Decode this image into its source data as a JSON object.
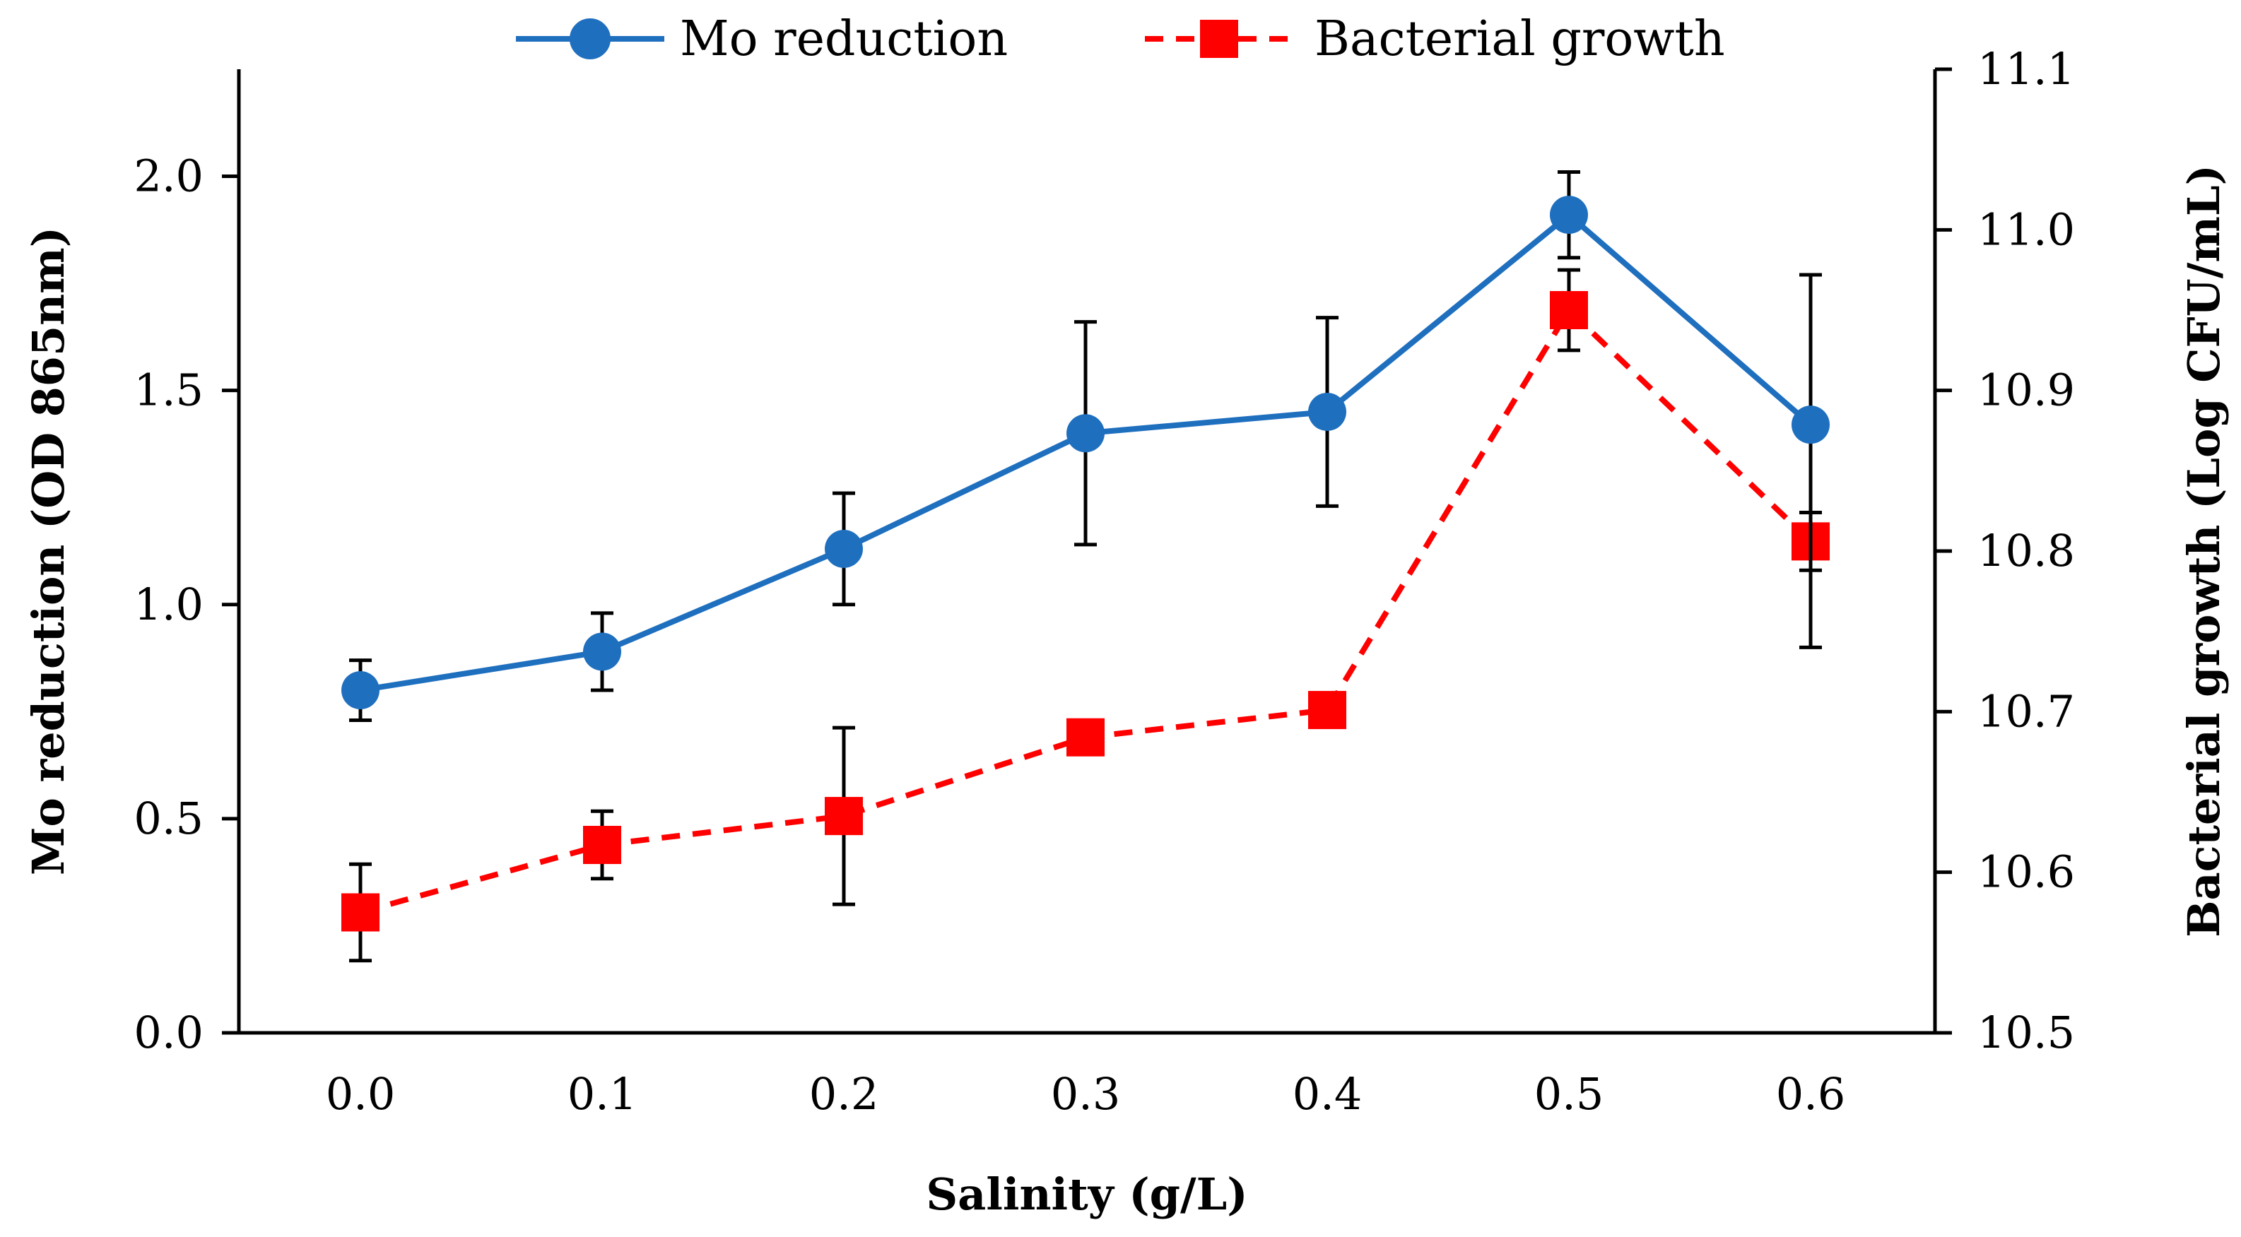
{
  "chart_data": {
    "type": "line",
    "xlabel": "Salinity (g/L)",
    "ylabel": "Mo reduction (OD 865nm)",
    "y2label": "Bacterial growth (Log CFU/mL)",
    "x": [
      0.0,
      0.1,
      0.2,
      0.3,
      0.4,
      0.5,
      0.6
    ],
    "x_tick_labels": [
      "0.0",
      "0.1",
      "0.2",
      "0.3",
      "0.4",
      "0.5",
      "0.6"
    ],
    "xlim": [
      -0.05,
      0.65
    ],
    "ylim": [
      0,
      2.25
    ],
    "y_ticks": [
      0.0,
      0.5,
      1.0,
      1.5,
      2.0
    ],
    "y_tick_labels": [
      "0.0",
      "0.5",
      "1.0",
      "1.5",
      "2.0"
    ],
    "y2lim": [
      10.5,
      11.1
    ],
    "y2_ticks": [
      10.5,
      10.6,
      10.7,
      10.8,
      10.9,
      11.0,
      11.1
    ],
    "y2_tick_labels": [
      "10.5",
      "10.6",
      "10.7",
      "10.8",
      "10.9",
      "11.0",
      "11.1"
    ],
    "legend_position": "top",
    "grid": false,
    "series": [
      {
        "name": "Mo reduction",
        "axis": "left",
        "marker": "circle",
        "line_style": "solid",
        "color": "#1F6FBF",
        "values": [
          0.8,
          0.89,
          1.13,
          1.4,
          1.45,
          1.91,
          1.42
        ],
        "error_low": [
          0.07,
          0.09,
          0.13,
          0.26,
          0.22,
          0.1,
          0.52
        ],
        "error_high": [
          0.07,
          0.09,
          0.13,
          0.26,
          0.22,
          0.1,
          0.35
        ],
        "error_color": "#000000"
      },
      {
        "name": "Bacterial growth",
        "axis": "right",
        "marker": "square",
        "line_style": "dashed",
        "color": "#FF0000",
        "values": [
          10.575,
          10.617,
          10.635,
          10.684,
          10.701,
          10.95,
          10.806
        ],
        "error_low": [
          0.03,
          0.021,
          0.055,
          0,
          0,
          0.025,
          0.018
        ],
        "error_high": [
          0.03,
          0.021,
          0.055,
          0,
          0,
          0.025,
          0.018
        ],
        "error_color": "#000000"
      }
    ]
  }
}
